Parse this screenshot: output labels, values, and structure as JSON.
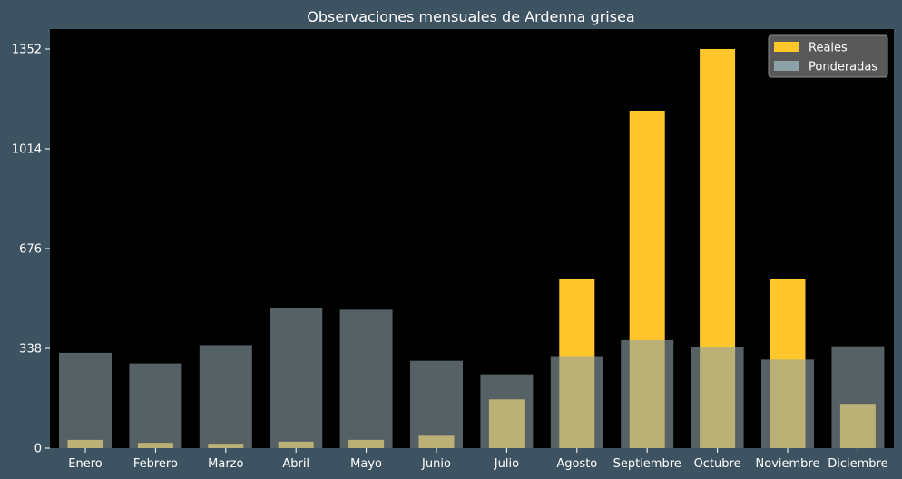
{
  "chart_data": {
    "type": "bar",
    "title": "Observaciones mensuales de Ardenna grisea",
    "xlabel": "",
    "ylabel": "",
    "categories": [
      "Enero",
      "Febrero",
      "Marzo",
      "Abril",
      "Mayo",
      "Junio",
      "Julio",
      "Agosto",
      "Septiembre",
      "Octubre",
      "Noviembre",
      "Diciembre"
    ],
    "series": [
      {
        "name": "Reales",
        "values": [
          28,
          18,
          15,
          22,
          28,
          42,
          165,
          572,
          1143,
          1352,
          572,
          150
        ],
        "color": "#ffc72c"
      },
      {
        "name": "Ponderadas",
        "values": [
          323,
          287,
          349,
          475,
          469,
          296,
          250,
          312,
          366,
          342,
          300,
          345
        ],
        "color": "#8da1a9"
      }
    ],
    "yticks": [
      0,
      338,
      676,
      1014,
      1352
    ],
    "ylim": [
      0,
      1352
    ],
    "legend_position": "top-right",
    "grid": false,
    "background": "#000000"
  }
}
